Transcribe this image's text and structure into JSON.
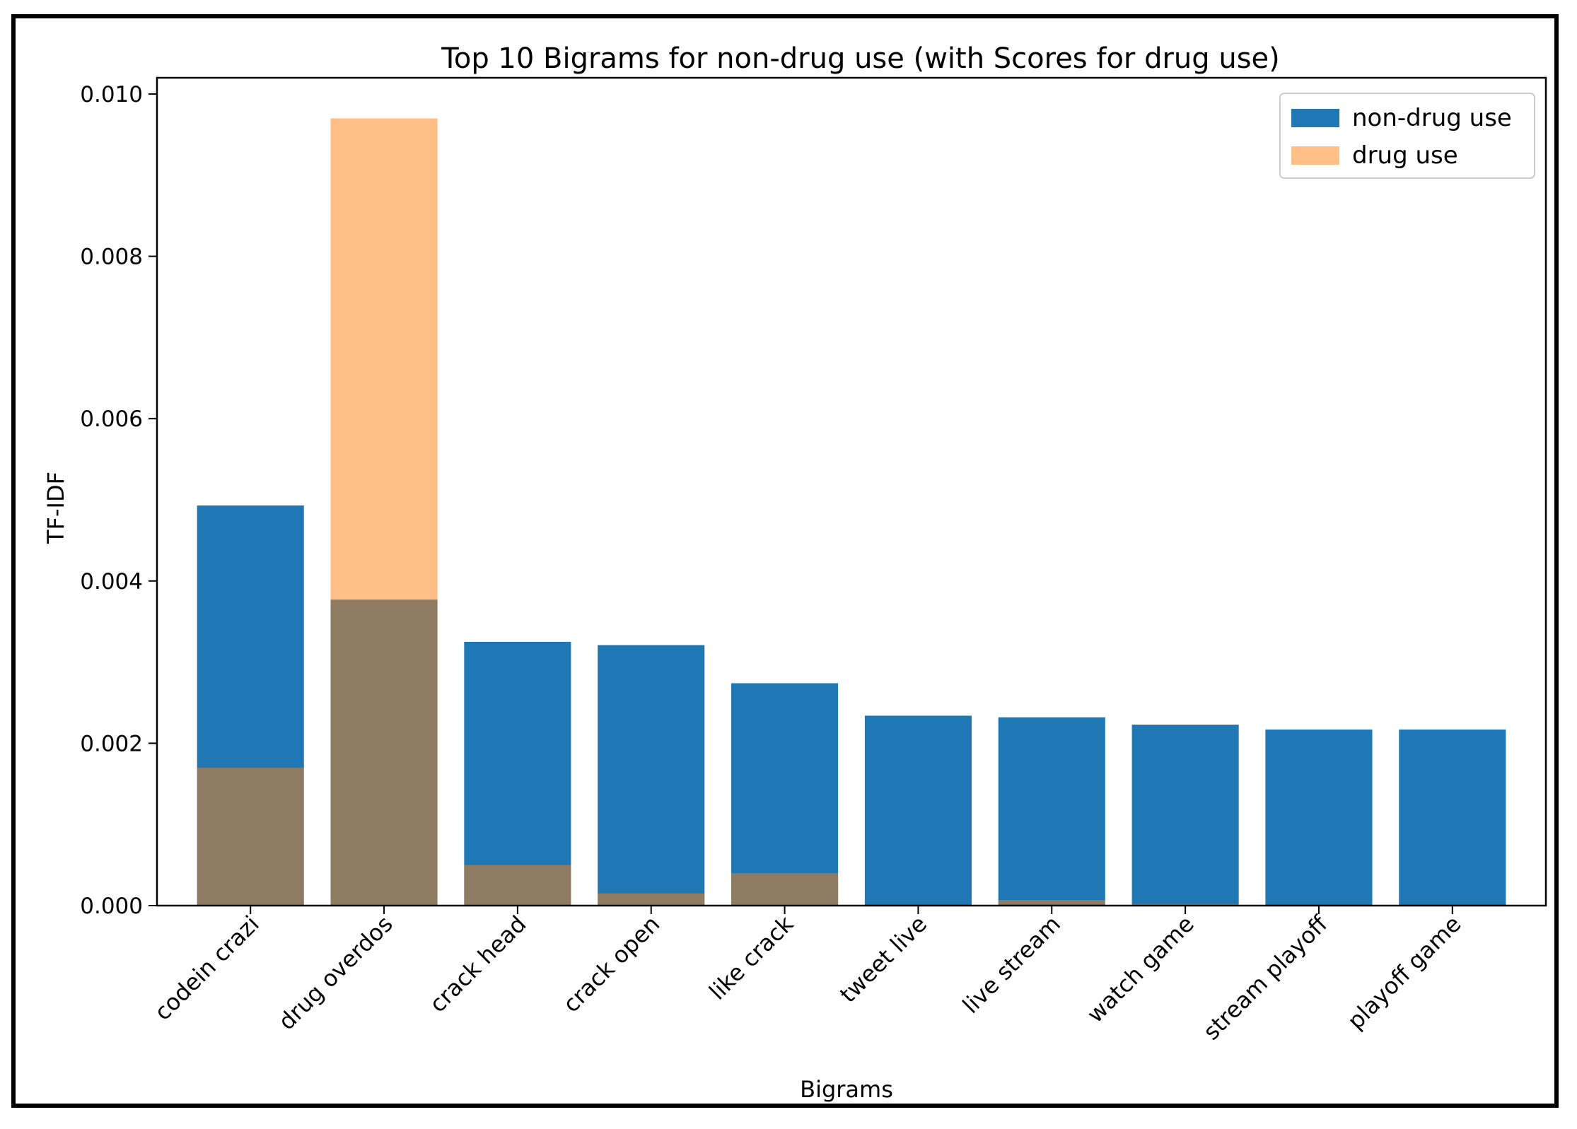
{
  "chart_data": {
    "type": "bar",
    "title": "Top 10 Bigrams for non-drug use (with Scores for drug use)",
    "xlabel": "Bigrams",
    "ylabel": "TF-IDF",
    "ylim": [
      0,
      0.0102
    ],
    "yticks": [
      "0.000",
      "0.002",
      "0.004",
      "0.006",
      "0.008",
      "0.010"
    ],
    "ytick_values": [
      0,
      0.002,
      0.004,
      0.006,
      0.008,
      0.01
    ],
    "categories": [
      "codein crazi",
      "drug overdos",
      "crack head",
      "crack open",
      "like crack",
      "tweet live",
      "live stream",
      "watch game",
      "stream playoff",
      "playoff game"
    ],
    "series": [
      {
        "name": "non-drug use",
        "color": "#1f77b4",
        "values": [
          0.00493,
          0.00377,
          0.00325,
          0.00321,
          0.00274,
          0.00234,
          0.00232,
          0.00223,
          0.00217,
          0.00217
        ]
      },
      {
        "name": "drug use",
        "color": "#ff7f0e",
        "opacity": 0.5,
        "values": [
          0.0017,
          0.0097,
          0.0005,
          0.00015,
          0.0004,
          0.0,
          7e-05,
          2e-05,
          0.0,
          0.0
        ]
      }
    ],
    "legend": {
      "position": "top-right",
      "labels": [
        "non-drug use",
        "drug use"
      ]
    },
    "grid": false
  }
}
